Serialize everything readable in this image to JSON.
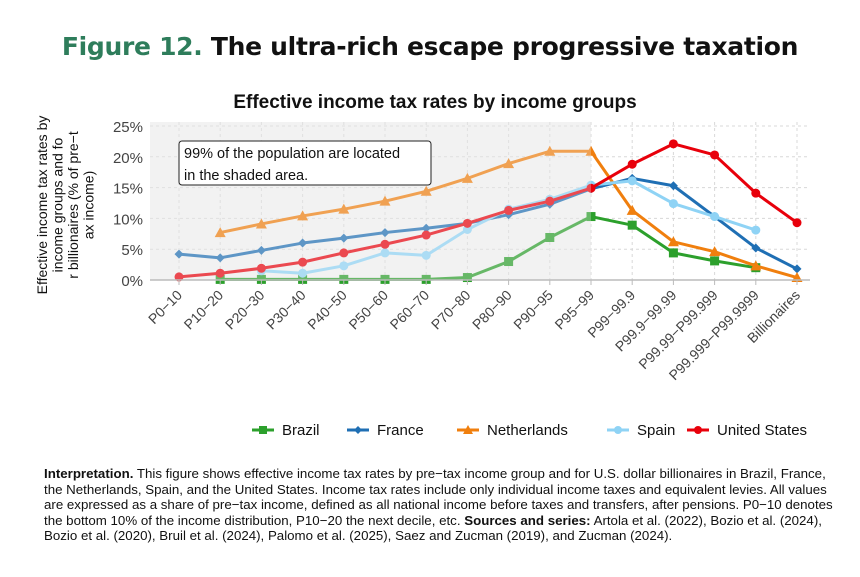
{
  "figure": {
    "number": "Figure 12.",
    "title": "The ultra-rich escape progressive taxation"
  },
  "annotation": [
    "99% of the population are located",
    "in the shaded area."
  ],
  "note": {
    "interp_label": "Interpretation.",
    "interp_text": " This figure shows effective income tax rates by pre−tax income group and for U.S. dollar billionaires in Brazil, France, the Netherlands, Spain, and the United States. Income tax rates include only individual income taxes and equivalent levies. All values are expressed as a share of pre−tax income, defined as all national income before taxes and transfers, after pensions. P0−10 denotes the bottom 10% of the income distribution, P10−20 the next decile, etc. ",
    "sources_label": "Sources and series:",
    "sources_text": " Artola et al. (2022), Bozio et al. (2024), Bozio et al. (2020), Bruil et al. (2024), Palomo et al. (2025), Saez and Zucman (2019), and Zucman (2024)."
  },
  "chart_data": {
    "type": "line",
    "title": "Effective income tax rates by income groups",
    "xlabel": "",
    "ylabel": "Effective income tax rates by income groups  and for billionaires (% of pre−tax income)",
    "ylim": [
      0,
      25
    ],
    "yticks": [
      "0%",
      "5%",
      "10%",
      "15%",
      "20%",
      "25%"
    ],
    "grid": true,
    "legend": "bottom",
    "shaded_range": [
      "P0−10",
      "P95−99"
    ],
    "categories": [
      "P0−10",
      "P10−20",
      "P20−30",
      "P30−40",
      "P40−50",
      "P50−60",
      "P60−70",
      "P70−80",
      "P80−90",
      "P90−95",
      "P95−99",
      "P99−99.9",
      "P99.9−99.99",
      "P99.99−P99.999",
      "P99.999−P99.9999",
      "Billionaires"
    ],
    "series": [
      {
        "name": "Brazil",
        "color": "#2ca02c",
        "marker": "square",
        "values": [
          null,
          0.1,
          0.1,
          0.1,
          0.1,
          0.1,
          0.1,
          0.4,
          3.0,
          6.9,
          10.3,
          8.9,
          4.4,
          3.1,
          2.0,
          null
        ]
      },
      {
        "name": "France",
        "color": "#1f6fb4",
        "marker": "diamond",
        "values": [
          4.2,
          3.6,
          4.8,
          6.0,
          6.8,
          7.7,
          8.4,
          9.2,
          10.6,
          12.3,
          14.8,
          16.5,
          15.3,
          10.3,
          5.2,
          1.8
        ]
      },
      {
        "name": "Netherlands",
        "color": "#f07f0e",
        "marker": "triangle",
        "values": [
          null,
          7.7,
          9.1,
          10.4,
          11.5,
          12.8,
          14.4,
          16.5,
          18.9,
          20.9,
          20.9,
          11.3,
          6.2,
          4.6,
          2.3,
          0.4
        ]
      },
      {
        "name": "Spain",
        "color": "#8fd3f5",
        "marker": "circle",
        "values": [
          null,
          null,
          1.5,
          1.1,
          2.3,
          4.4,
          4.0,
          8.2,
          11.5,
          13.1,
          15.4,
          16.1,
          12.4,
          10.3,
          8.1,
          null
        ]
      },
      {
        "name": "United States",
        "color": "#e8000b",
        "marker": "circle",
        "values": [
          0.5,
          1.1,
          1.9,
          2.9,
          4.4,
          5.8,
          7.3,
          9.2,
          11.3,
          12.8,
          14.9,
          18.8,
          22.1,
          20.3,
          14.1,
          9.3
        ]
      }
    ]
  }
}
